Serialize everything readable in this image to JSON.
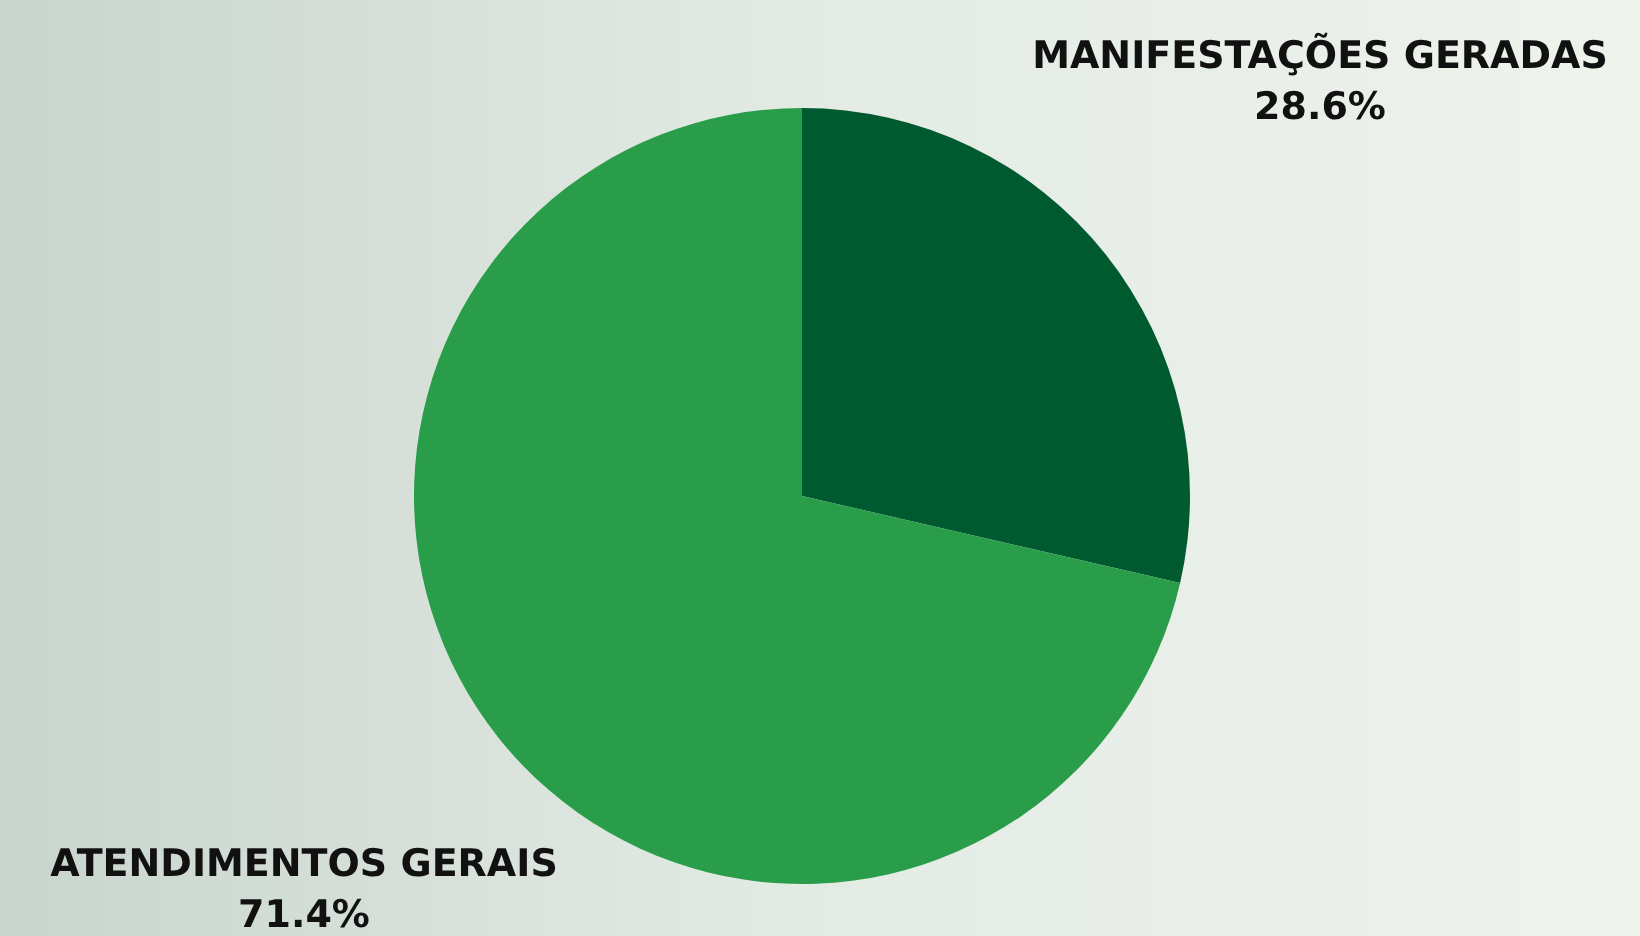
{
  "chart_data": {
    "type": "pie",
    "categories": [
      "MANIFESTAÇÕES GERADAS",
      "ATENDIMENTOS GERAIS"
    ],
    "values": [
      28.6,
      71.4
    ],
    "colors": [
      "#005a30",
      "#299d4a"
    ],
    "value_labels": [
      "28.6%",
      "71.4%"
    ]
  }
}
